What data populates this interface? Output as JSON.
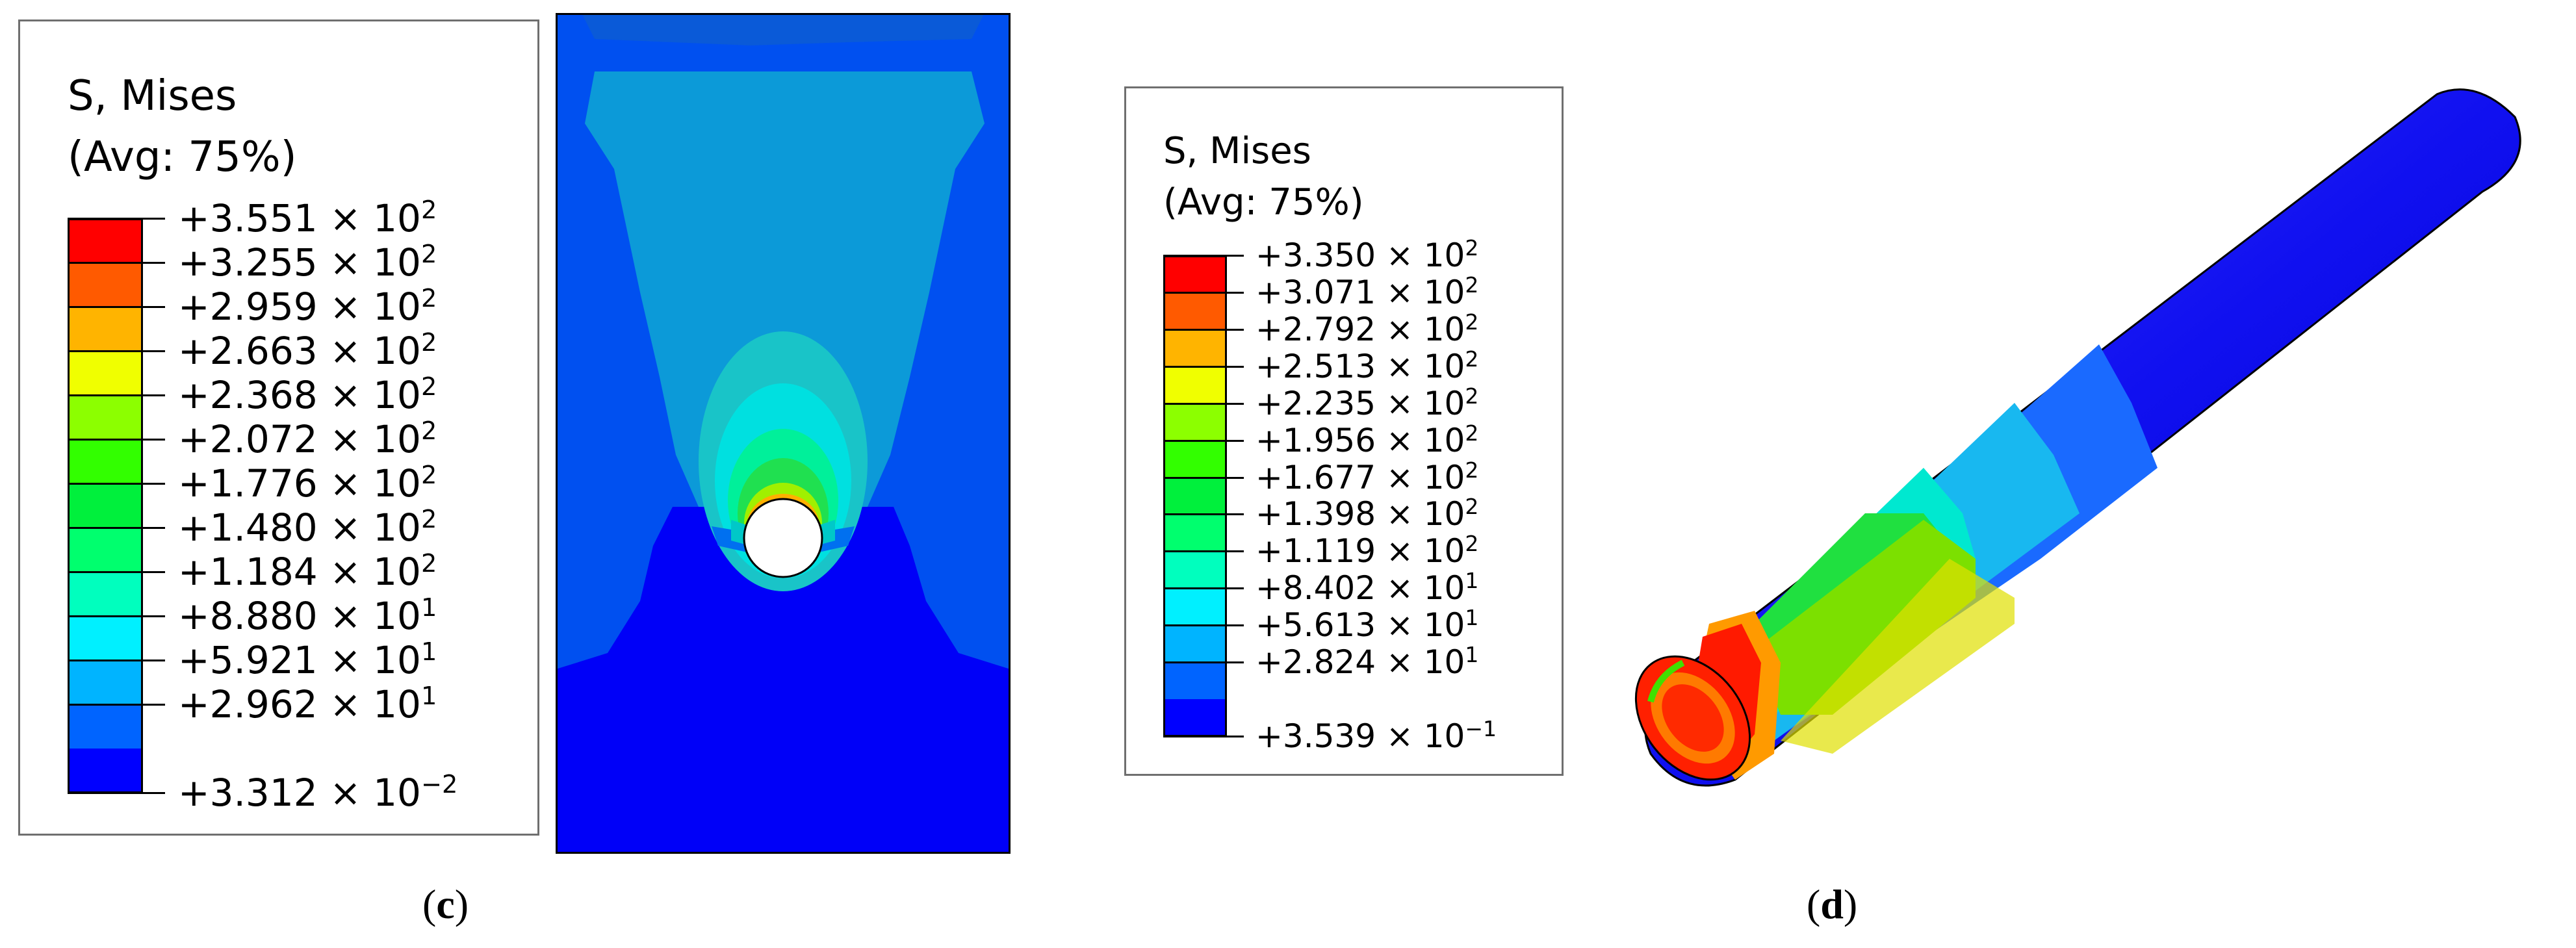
{
  "panel_c": {
    "legend": {
      "title": "S, Mises",
      "subtitle": "(Avg: 75%)",
      "entries": [
        {
          "mantissa": "+3.551",
          "exp": "2"
        },
        {
          "mantissa": "+3.255",
          "exp": "2"
        },
        {
          "mantissa": "+2.959",
          "exp": "2"
        },
        {
          "mantissa": "+2.663",
          "exp": "2"
        },
        {
          "mantissa": "+2.368",
          "exp": "2"
        },
        {
          "mantissa": "+2.072",
          "exp": "2"
        },
        {
          "mantissa": "+1.776",
          "exp": "2"
        },
        {
          "mantissa": "+1.480",
          "exp": "2"
        },
        {
          "mantissa": "+1.184",
          "exp": "2"
        },
        {
          "mantissa": "+8.880",
          "exp": "1"
        },
        {
          "mantissa": "+5.921",
          "exp": "1"
        },
        {
          "mantissa": "+2.962",
          "exp": "1"
        },
        {
          "mantissa": "+3.312",
          "exp": "−2"
        }
      ]
    },
    "caption_letter": "c"
  },
  "panel_d": {
    "legend": {
      "title": "S, Mises",
      "subtitle": "(Avg: 75%)",
      "entries": [
        {
          "mantissa": "+3.350",
          "exp": "2"
        },
        {
          "mantissa": "+3.071",
          "exp": "2"
        },
        {
          "mantissa": "+2.792",
          "exp": "2"
        },
        {
          "mantissa": "+2.513",
          "exp": "2"
        },
        {
          "mantissa": "+2.235",
          "exp": "2"
        },
        {
          "mantissa": "+1.956",
          "exp": "2"
        },
        {
          "mantissa": "+1.677",
          "exp": "2"
        },
        {
          "mantissa": "+1.398",
          "exp": "2"
        },
        {
          "mantissa": "+1.119",
          "exp": "2"
        },
        {
          "mantissa": "+8.402",
          "exp": "1"
        },
        {
          "mantissa": "+5.613",
          "exp": "1"
        },
        {
          "mantissa": "+2.824",
          "exp": "1"
        },
        {
          "mantissa": "+3.539",
          "exp": "−1"
        }
      ]
    },
    "caption_letter": "d"
  },
  "colormap": [
    "#ff0000",
    "#ff5a00",
    "#ffb400",
    "#f0ff00",
    "#8cff00",
    "#32ff00",
    "#00f03c",
    "#00ff6e",
    "#00ffbe",
    "#00f0ff",
    "#00b4ff",
    "#0064ff",
    "#0000ff"
  ],
  "multiply_sign": "×",
  "base": "10"
}
